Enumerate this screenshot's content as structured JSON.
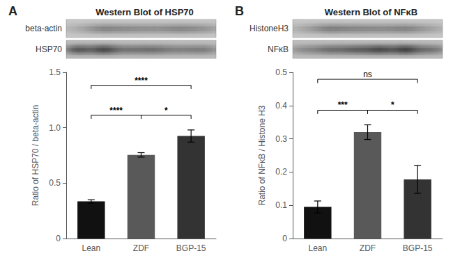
{
  "chart_data": [
    {
      "type": "bar",
      "title": "Western Blot of HSP70",
      "panel_label": "A",
      "categories": [
        "Lean",
        "ZDF",
        "BGP-15"
      ],
      "values": [
        0.335,
        0.755,
        0.925
      ],
      "errors": [
        0.015,
        0.02,
        0.055
      ],
      "colors": [
        "#111111",
        "#595959",
        "#333333"
      ],
      "ylabel": "Ratio of HSP70 / beta-actin",
      "ylim": [
        0,
        1.5
      ],
      "yticks": [
        0,
        0.5,
        {
          "value": 1,
          "label": "1.0"
        },
        1.5
      ],
      "grid": false,
      "blots": [
        {
          "label": "beta-actin",
          "background": 0.78,
          "bands": [
            0.92,
            0.78,
            0.82,
            0.84,
            0.8,
            0.82
          ],
          "widths": [
            0.1,
            0.09,
            0.1,
            0.1,
            0.09,
            0.1
          ]
        },
        {
          "label": "HSP70",
          "background": 0.75,
          "bands": [
            0.55,
            0.52,
            0.72,
            0.74,
            0.8,
            0.76
          ],
          "widths": [
            0.07,
            0.07,
            0.1,
            0.09,
            0.1,
            0.09
          ]
        }
      ],
      "annotations": [
        {
          "from": "Lean",
          "to": "ZDF",
          "y": 1.08,
          "label": "****",
          "bold": true
        },
        {
          "from": "Lean",
          "to": "BGP-15",
          "y": 1.35,
          "label": "****",
          "bold": true
        },
        {
          "from": "ZDF",
          "to": "BGP-15",
          "y": 1.08,
          "label": "*",
          "bold": true
        }
      ]
    },
    {
      "type": "bar",
      "title": "Western Blot of NFκB",
      "panel_label": "B",
      "categories": [
        "Lean",
        "ZDF",
        "BGP-15"
      ],
      "values": [
        0.095,
        0.32,
        0.178
      ],
      "errors": [
        0.018,
        0.022,
        0.042
      ],
      "colors": [
        "#111111",
        "#595959",
        "#333333"
      ],
      "ylabel": "Ratio of NFκB / Histone H3",
      "ylim": [
        0,
        0.5
      ],
      "yticks": [
        0,
        0.1,
        0.2,
        0.3,
        0.4,
        0.5
      ],
      "grid": false,
      "blots": [
        {
          "label": "HistoneH3",
          "background": 0.78,
          "bands": [
            0.9,
            0.76,
            0.8,
            0.82,
            0.78,
            0.88
          ],
          "widths": [
            0.1,
            0.09,
            0.1,
            0.1,
            0.09,
            0.1
          ]
        },
        {
          "label": "NFκB",
          "background": 0.75,
          "bands": [
            0.8,
            0.72,
            0.62,
            0.52,
            0.48,
            0.68
          ],
          "widths": [
            0.09,
            0.08,
            0.09,
            0.08,
            0.07,
            0.09
          ]
        }
      ],
      "annotations": [
        {
          "from": "Lean",
          "to": "ZDF",
          "y": 0.375,
          "label": "***",
          "bold": true
        },
        {
          "from": "Lean",
          "to": "BGP-15",
          "y": 0.468,
          "label": "ns",
          "bold": false
        },
        {
          "from": "ZDF",
          "to": "BGP-15",
          "y": 0.375,
          "label": "*",
          "bold": true
        }
      ]
    }
  ]
}
